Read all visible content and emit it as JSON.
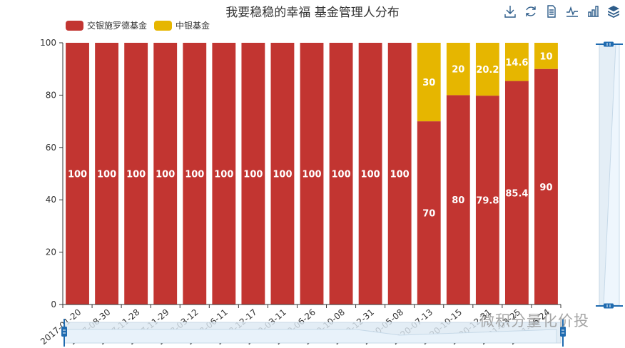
{
  "title": "我要稳稳的幸福 基金管理人分布",
  "legend": [
    {
      "label": "交银施罗德基金",
      "color": "#c23531"
    },
    {
      "label": "中银基金",
      "color": "#e6b600"
    }
  ],
  "toolbox": [
    {
      "name": "save-as-image-icon"
    },
    {
      "name": "restore-icon"
    },
    {
      "name": "data-view-icon"
    },
    {
      "name": "line-chart-icon"
    },
    {
      "name": "bar-chart-icon"
    },
    {
      "name": "stack-icon"
    }
  ],
  "watermark": "微积分量化价投",
  "chart_data": {
    "type": "bar",
    "stacked": true,
    "title": "我要稳稳的幸福 基金管理人分布",
    "xlabel": "",
    "ylabel": "",
    "ylim": [
      0,
      100
    ],
    "yticks": [
      0,
      20,
      40,
      60,
      80,
      100
    ],
    "categories": [
      "2017-01-20",
      "2017-08-30",
      "2017-11-28",
      "2017-11-29",
      "2018-03-12",
      "2018-06-11",
      "2018-12-17",
      "2019-03-11",
      "2019-06-26",
      "2019-10-08",
      "2019-12-31",
      "2020-05-08",
      "2020-07-13",
      "2020-10-15",
      "2020-12-31",
      "2021-03-25",
      "2021-06-24"
    ],
    "series": [
      {
        "name": "交银施罗德基金",
        "color": "#c23531",
        "values": [
          100,
          100,
          100,
          100,
          100,
          100,
          100,
          100,
          100,
          100,
          100,
          100,
          70,
          80,
          79.8,
          85.4,
          90
        ]
      },
      {
        "name": "中银基金",
        "color": "#e6b600",
        "values": [
          0,
          0,
          0,
          0,
          0,
          0,
          0,
          0,
          0,
          0,
          0,
          0,
          30,
          20,
          20.2,
          14.6,
          10
        ]
      }
    ],
    "legend_position": "top-left",
    "grid": false,
    "data_zoom": {
      "x": {
        "start": 0,
        "end": 100
      },
      "y": {
        "start": 0,
        "end": 100
      }
    }
  }
}
